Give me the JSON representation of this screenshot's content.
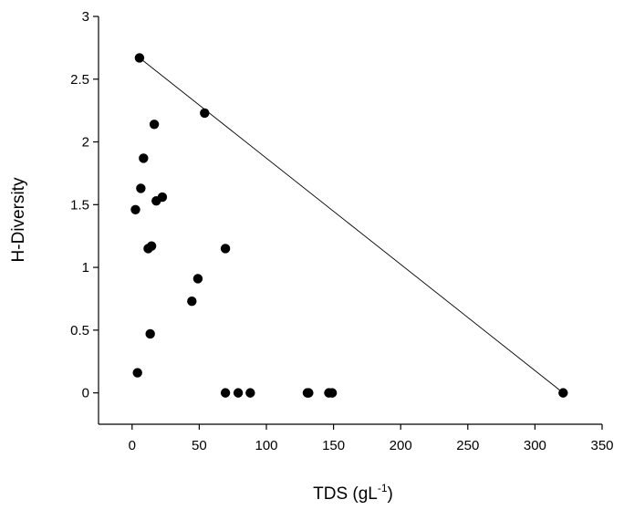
{
  "chart_data": {
    "type": "scatter",
    "title": "",
    "xlabel": "TDS (gL",
    "xlabel_superscript": "-1",
    "xlabel_suffix": ")",
    "ylabel": "H-Diversity",
    "xlim": [
      -25,
      350
    ],
    "ylim": [
      -0.25,
      3
    ],
    "xticks": [
      0,
      50,
      100,
      150,
      200,
      250,
      300,
      350
    ],
    "yticks": [
      0,
      0.5,
      1,
      1.5,
      2,
      2.5,
      3
    ],
    "xtick_labels": [
      "0",
      "50",
      "100",
      "150",
      "200",
      "250",
      "300",
      "350"
    ],
    "ytick_labels": [
      "0",
      "0.5",
      "1",
      "1.5",
      "2",
      "2.5",
      "3"
    ],
    "grid": false,
    "series": [
      {
        "name": "H-Diversity",
        "points": [
          {
            "x": 5.5,
            "y": 2.67
          },
          {
            "x": 54,
            "y": 2.23
          },
          {
            "x": 16.5,
            "y": 2.14
          },
          {
            "x": 8.5,
            "y": 1.87
          },
          {
            "x": 6.5,
            "y": 1.63
          },
          {
            "x": 22.5,
            "y": 1.56
          },
          {
            "x": 18,
            "y": 1.53
          },
          {
            "x": 2.5,
            "y": 1.46
          },
          {
            "x": 14.5,
            "y": 1.17
          },
          {
            "x": 12,
            "y": 1.15
          },
          {
            "x": 69.5,
            "y": 1.15
          },
          {
            "x": 49,
            "y": 0.91
          },
          {
            "x": 44.5,
            "y": 0.73
          },
          {
            "x": 13.5,
            "y": 0.47
          },
          {
            "x": 4,
            "y": 0.16
          },
          {
            "x": 69.5,
            "y": 0
          },
          {
            "x": 79,
            "y": 0
          },
          {
            "x": 88,
            "y": 0
          },
          {
            "x": 130.5,
            "y": 0
          },
          {
            "x": 131.5,
            "y": 0
          },
          {
            "x": 146.5,
            "y": 0
          },
          {
            "x": 149,
            "y": 0
          },
          {
            "x": 321,
            "y": 0
          }
        ]
      }
    ],
    "lines": [
      {
        "name": "fit-line",
        "x1": 5.5,
        "y1": 2.67,
        "x2": 321,
        "y2": 0
      }
    ]
  }
}
